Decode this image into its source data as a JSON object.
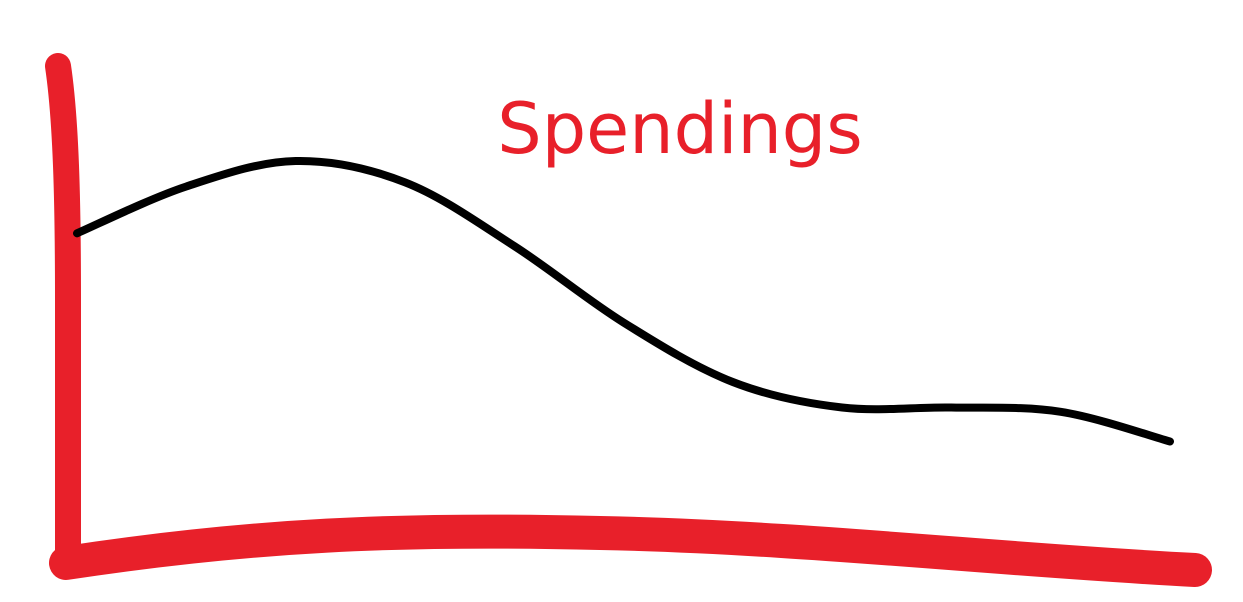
{
  "chart_data": {
    "type": "line",
    "title": "Spendings",
    "xlabel": "",
    "ylabel": "",
    "grid": false,
    "legend": "none",
    "x": [
      0,
      1,
      2,
      3,
      4,
      5,
      6,
      7,
      8,
      9,
      10
    ],
    "series": [
      {
        "values": [
          0.71,
          0.82,
          0.88,
          0.83,
          0.68,
          0.5,
          0.36,
          0.3,
          0.3,
          0.29,
          0.22
        ]
      }
    ],
    "ylim": [
      0,
      1
    ],
    "colors": {
      "axes": "#e8202a",
      "line": "#000000",
      "title": "#e8202a"
    }
  }
}
